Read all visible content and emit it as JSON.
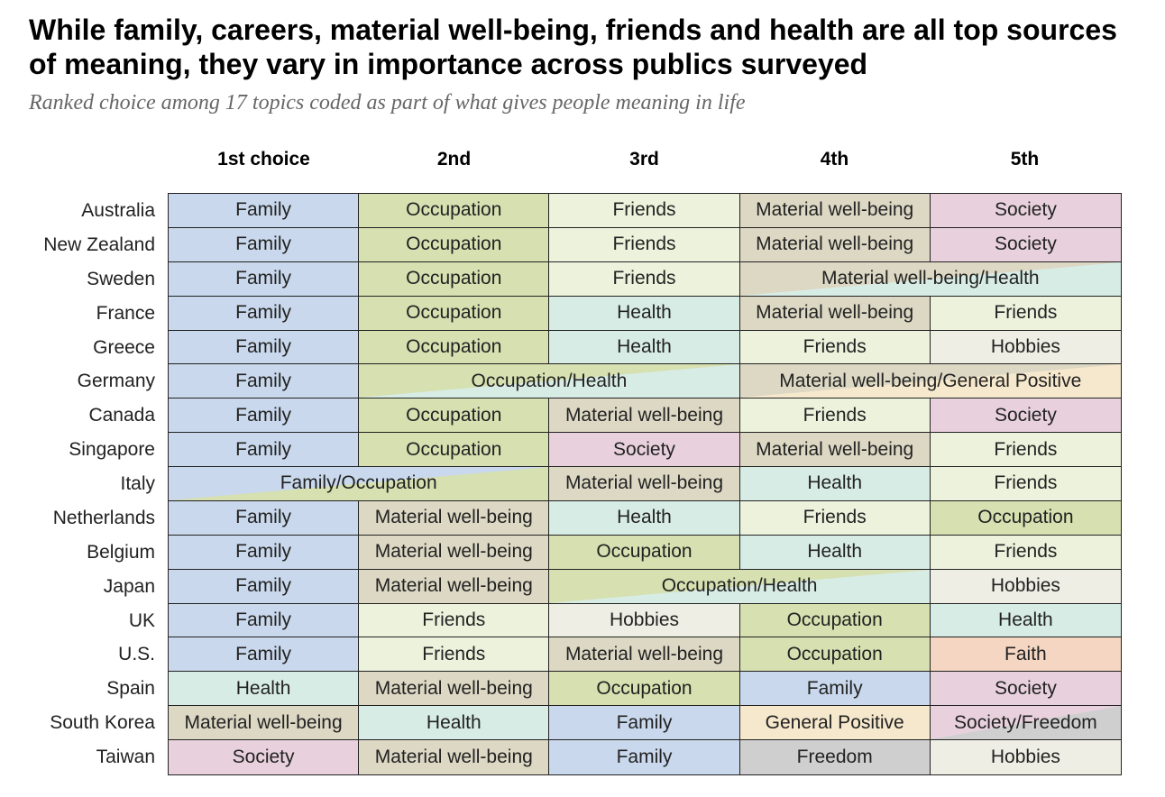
{
  "title": "While family, careers, material well-being, friends and health are all top sources of meaning, they vary in importance across publics surveyed",
  "subtitle": "Ranked choice among 17 topics coded as part of what gives people meaning in life",
  "colors": {
    "Family": "#c9d8ec",
    "Occupation": "#d6e0b0",
    "Friends": "#edf2dc",
    "Material well-being": "#ddd8c4",
    "Society": "#e8d1dc",
    "Health": "#d8ece6",
    "Hobbies": "#eeeee4",
    "Faith": "#f4d6c2",
    "General Positive": "#f6e8cc",
    "Freedom": "#cfcfcf"
  },
  "chart_data": {
    "type": "table",
    "title": "While family, careers, material well-being, friends and health are all top sources of meaning, they vary in importance across publics surveyed",
    "subtitle": "Ranked choice among 17 topics coded as part of what gives people meaning in life",
    "columns": [
      "1st choice",
      "2nd",
      "3rd",
      "4th",
      "5th"
    ],
    "rows": [
      {
        "country": "Australia",
        "cells": [
          {
            "label": "Family",
            "span": 1
          },
          {
            "label": "Occupation",
            "span": 1
          },
          {
            "label": "Friends",
            "span": 1
          },
          {
            "label": "Material well-being",
            "span": 1
          },
          {
            "label": "Society",
            "span": 1
          }
        ]
      },
      {
        "country": "New Zealand",
        "cells": [
          {
            "label": "Family",
            "span": 1
          },
          {
            "label": "Occupation",
            "span": 1
          },
          {
            "label": "Friends",
            "span": 1
          },
          {
            "label": "Material well-being",
            "span": 1
          },
          {
            "label": "Society",
            "span": 1
          }
        ]
      },
      {
        "country": "Sweden",
        "cells": [
          {
            "label": "Family",
            "span": 1
          },
          {
            "label": "Occupation",
            "span": 1
          },
          {
            "label": "Friends",
            "span": 1
          },
          {
            "label": "Material well-being/Health",
            "span": 2
          }
        ]
      },
      {
        "country": "France",
        "cells": [
          {
            "label": "Family",
            "span": 1
          },
          {
            "label": "Occupation",
            "span": 1
          },
          {
            "label": "Health",
            "span": 1
          },
          {
            "label": "Material well-being",
            "span": 1
          },
          {
            "label": "Friends",
            "span": 1
          }
        ]
      },
      {
        "country": "Greece",
        "cells": [
          {
            "label": "Family",
            "span": 1
          },
          {
            "label": "Occupation",
            "span": 1
          },
          {
            "label": "Health",
            "span": 1
          },
          {
            "label": "Friends",
            "span": 1
          },
          {
            "label": "Hobbies",
            "span": 1
          }
        ]
      },
      {
        "country": "Germany",
        "cells": [
          {
            "label": "Family",
            "span": 1
          },
          {
            "label": "Occupation/Health",
            "span": 2
          },
          {
            "label": "Material well-being/General Positive",
            "span": 2
          }
        ]
      },
      {
        "country": "Canada",
        "cells": [
          {
            "label": "Family",
            "span": 1
          },
          {
            "label": "Occupation",
            "span": 1
          },
          {
            "label": "Material well-being",
            "span": 1
          },
          {
            "label": "Friends",
            "span": 1
          },
          {
            "label": "Society",
            "span": 1
          }
        ]
      },
      {
        "country": "Singapore",
        "cells": [
          {
            "label": "Family",
            "span": 1
          },
          {
            "label": "Occupation",
            "span": 1
          },
          {
            "label": "Society",
            "span": 1
          },
          {
            "label": "Material well-being",
            "span": 1
          },
          {
            "label": "Friends",
            "span": 1
          }
        ]
      },
      {
        "country": "Italy",
        "cells": [
          {
            "label": "Family/Occupation",
            "span": 2
          },
          {
            "label": "Material well-being",
            "span": 1
          },
          {
            "label": "Health",
            "span": 1
          },
          {
            "label": "Friends",
            "span": 1
          }
        ]
      },
      {
        "country": "Netherlands",
        "cells": [
          {
            "label": "Family",
            "span": 1
          },
          {
            "label": "Material well-being",
            "span": 1
          },
          {
            "label": "Health",
            "span": 1
          },
          {
            "label": "Friends",
            "span": 1
          },
          {
            "label": "Occupation",
            "span": 1
          }
        ]
      },
      {
        "country": "Belgium",
        "cells": [
          {
            "label": "Family",
            "span": 1
          },
          {
            "label": "Material well-being",
            "span": 1
          },
          {
            "label": "Occupation",
            "span": 1
          },
          {
            "label": "Health",
            "span": 1
          },
          {
            "label": "Friends",
            "span": 1
          }
        ]
      },
      {
        "country": "Japan",
        "cells": [
          {
            "label": "Family",
            "span": 1
          },
          {
            "label": "Material well-being",
            "span": 1
          },
          {
            "label": "Occupation/Health",
            "span": 2
          },
          {
            "label": "Hobbies",
            "span": 1
          }
        ]
      },
      {
        "country": "UK",
        "cells": [
          {
            "label": "Family",
            "span": 1
          },
          {
            "label": "Friends",
            "span": 1
          },
          {
            "label": "Hobbies",
            "span": 1
          },
          {
            "label": "Occupation",
            "span": 1
          },
          {
            "label": "Health",
            "span": 1
          }
        ]
      },
      {
        "country": "U.S.",
        "cells": [
          {
            "label": "Family",
            "span": 1
          },
          {
            "label": "Friends",
            "span": 1
          },
          {
            "label": "Material well-being",
            "span": 1
          },
          {
            "label": "Occupation",
            "span": 1
          },
          {
            "label": "Faith",
            "span": 1
          }
        ]
      },
      {
        "country": "Spain",
        "cells": [
          {
            "label": "Health",
            "span": 1
          },
          {
            "label": "Material well-being",
            "span": 1
          },
          {
            "label": "Occupation",
            "span": 1
          },
          {
            "label": "Family",
            "span": 1
          },
          {
            "label": "Society",
            "span": 1
          }
        ]
      },
      {
        "country": "South Korea",
        "cells": [
          {
            "label": "Material well-being",
            "span": 1
          },
          {
            "label": "Health",
            "span": 1
          },
          {
            "label": "Family",
            "span": 1
          },
          {
            "label": "General Positive",
            "span": 1
          },
          {
            "label": "Society/Freedom",
            "span": 1
          }
        ]
      },
      {
        "country": "Taiwan",
        "cells": [
          {
            "label": "Society",
            "span": 1
          },
          {
            "label": "Material well-being",
            "span": 1
          },
          {
            "label": "Family",
            "span": 1
          },
          {
            "label": "Freedom",
            "span": 1
          },
          {
            "label": "Hobbies",
            "span": 1
          }
        ]
      }
    ]
  }
}
